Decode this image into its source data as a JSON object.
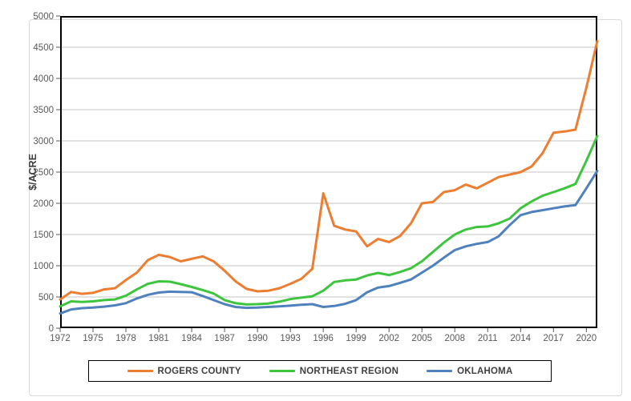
{
  "figure": {
    "background": "#FFFFFF",
    "frame_border_color": "#D9D9D9"
  },
  "styles": {
    "tick_label_color": "#595959",
    "axis_title_color": "#404040",
    "grid_color": "#C6C6C6",
    "plot_border_color": "#000000",
    "legend_border_color": "#000000"
  },
  "chart_data": {
    "type": "line",
    "title": "",
    "xlabel": "",
    "ylabel": "$/ACRE",
    "ylim": [
      0,
      5000
    ],
    "ytick_step": 500,
    "grid": true,
    "legend_position": "bottom",
    "years": [
      1972,
      1973,
      1974,
      1975,
      1976,
      1977,
      1978,
      1979,
      1980,
      1981,
      1982,
      1983,
      1984,
      1985,
      1986,
      1987,
      1988,
      1989,
      1990,
      1991,
      1992,
      1993,
      1994,
      1995,
      1996,
      1997,
      1998,
      1999,
      2000,
      2001,
      2002,
      2003,
      2004,
      2005,
      2006,
      2007,
      2008,
      2009,
      2010,
      2011,
      2012,
      2013,
      2014,
      2015,
      2016,
      2017,
      2018,
      2019,
      2020,
      2021
    ],
    "x_tick_labels": [
      "1972",
      "1975",
      "1978",
      "1981",
      "1984",
      "1987",
      "1990",
      "1993",
      "1996",
      "1999",
      "2002",
      "2005",
      "2008",
      "2011",
      "2014",
      "2017",
      "2020"
    ],
    "series": [
      {
        "name": "ROGERS COUNTY",
        "color": "#ED7D31",
        "values": [
          460,
          580,
          550,
          565,
          620,
          640,
          770,
          890,
          1090,
          1175,
          1140,
          1070,
          1110,
          1150,
          1070,
          920,
          750,
          630,
          590,
          600,
          640,
          710,
          790,
          950,
          2160,
          1640,
          1580,
          1550,
          1310,
          1430,
          1380,
          1475,
          1680,
          2000,
          2020,
          2180,
          2210,
          2300,
          2240,
          2330,
          2420,
          2460,
          2500,
          2590,
          2800,
          3130,
          3150,
          3180,
          3850,
          4600
        ]
      },
      {
        "name": "NORTHEAST REGION",
        "color": "#3EC53E",
        "values": [
          350,
          430,
          420,
          430,
          450,
          460,
          520,
          620,
          710,
          750,
          745,
          705,
          660,
          610,
          555,
          450,
          400,
          380,
          385,
          395,
          425,
          465,
          490,
          510,
          600,
          740,
          765,
          780,
          845,
          885,
          850,
          900,
          960,
          1070,
          1220,
          1370,
          1500,
          1580,
          1620,
          1630,
          1680,
          1755,
          1920,
          2030,
          2120,
          2180,
          2240,
          2310,
          2680,
          3080
        ]
      },
      {
        "name": "OKLAHOMA",
        "color": "#4E81BD",
        "values": [
          235,
          300,
          320,
          330,
          345,
          365,
          400,
          475,
          535,
          570,
          585,
          580,
          575,
          515,
          450,
          385,
          340,
          325,
          330,
          340,
          350,
          360,
          375,
          385,
          340,
          355,
          390,
          450,
          575,
          650,
          675,
          725,
          780,
          890,
          1000,
          1130,
          1250,
          1310,
          1350,
          1380,
          1470,
          1650,
          1810,
          1860,
          1890,
          1920,
          1950,
          1970,
          2240,
          2520
        ]
      }
    ]
  }
}
